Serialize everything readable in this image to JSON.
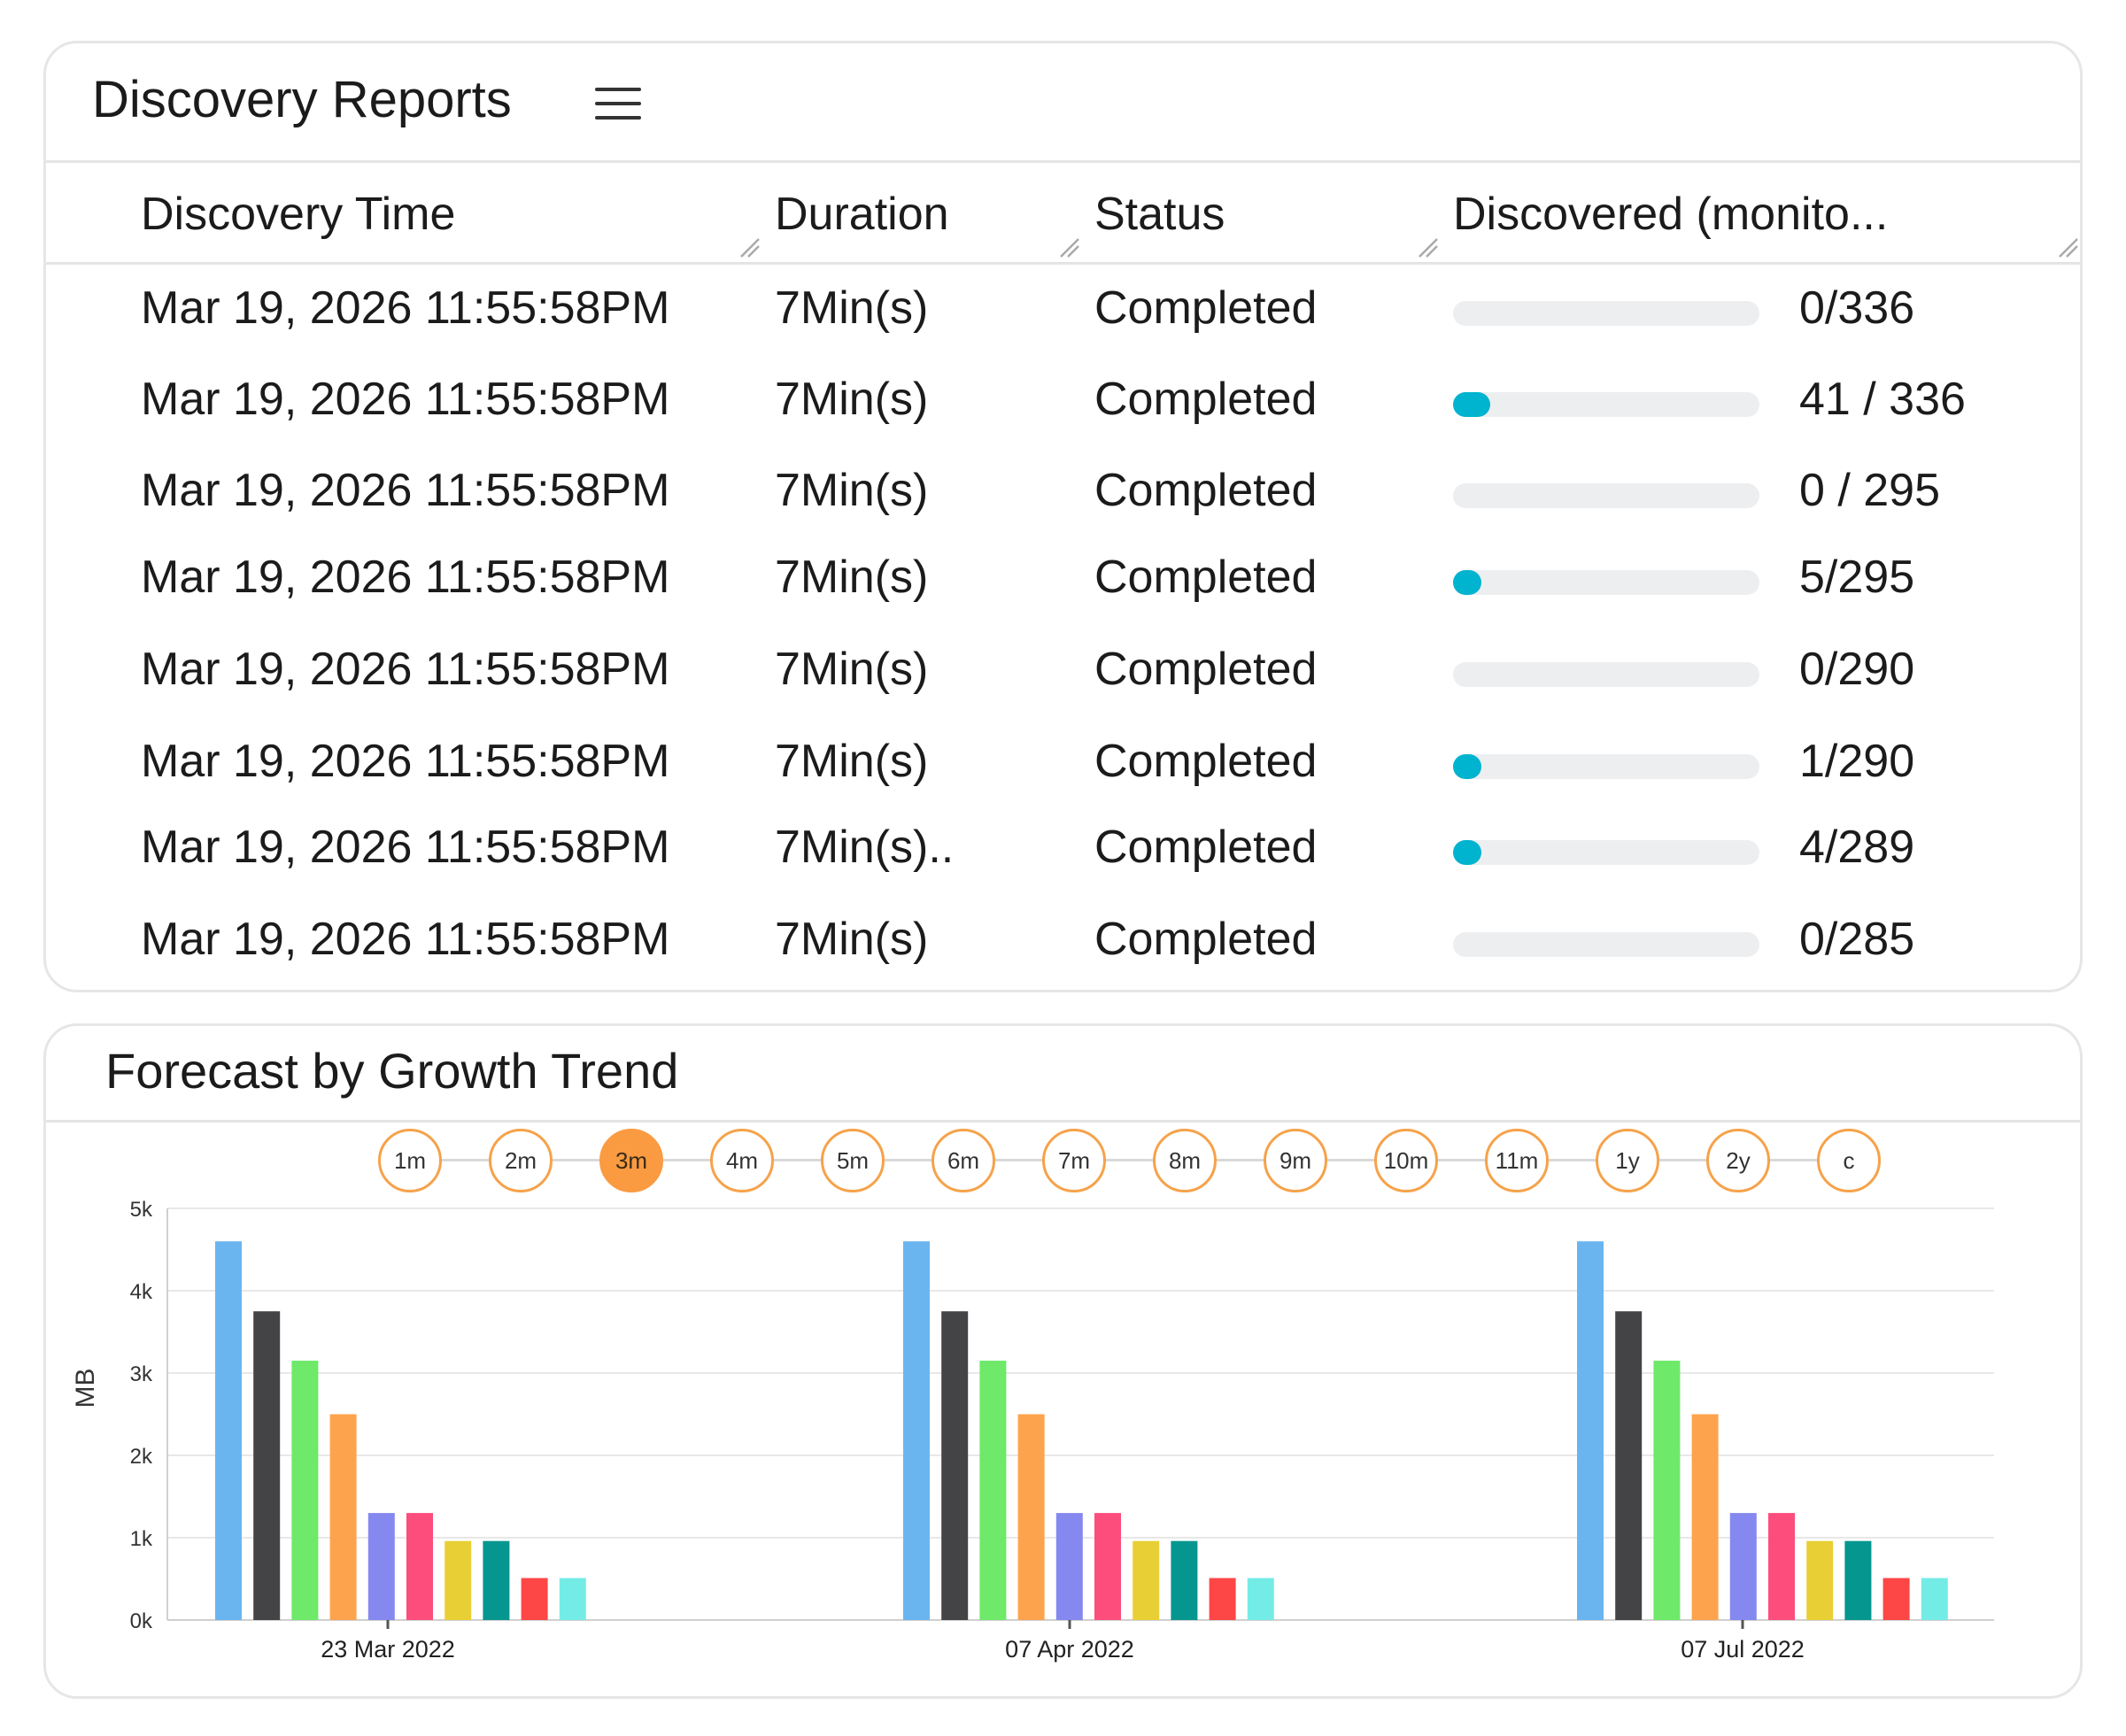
{
  "reports": {
    "title": "Discovery Reports",
    "menu_icon": "hamburger-menu-icon",
    "columns": [
      "Discovery Time",
      "Duration",
      "Status",
      "Discovered (monito..."
    ],
    "rows": [
      {
        "time": "Mar 19, 2026 11:55:58PM",
        "duration": "7Min(s)",
        "status": "Completed",
        "discovered": "0/336",
        "fraction": 0.0
      },
      {
        "time": "Mar 19, 2026 11:55:58PM",
        "duration": "7Min(s)",
        "status": "Completed",
        "discovered": "41 / 336",
        "fraction": 0.122
      },
      {
        "time": "Mar 19, 2026 11:55:58PM",
        "duration": "7Min(s)",
        "status": "Completed",
        "discovered": "0 / 295",
        "fraction": 0.0
      },
      {
        "time": "Mar 19, 2026 11:55:58PM",
        "duration": "7Min(s)",
        "status": "Completed",
        "discovered": "5/295",
        "fraction": 0.017
      },
      {
        "time": "Mar 19, 2026 11:55:58PM",
        "duration": "7Min(s)",
        "status": "Completed",
        "discovered": "0/290",
        "fraction": 0.0
      },
      {
        "time": "Mar 19, 2026 11:55:58PM",
        "duration": "7Min(s)",
        "status": "Completed",
        "discovered": "1/290",
        "fraction": 0.0034
      },
      {
        "time": "Mar 19, 2026 11:55:58PM",
        "duration": "7Min(s)..",
        "status": "Completed",
        "discovered": "4/289",
        "fraction": 0.014
      },
      {
        "time": "Mar 19, 2026 11:55:58PM",
        "duration": "7Min(s)",
        "status": "Completed",
        "discovered": "0/285",
        "fraction": 0.0
      }
    ],
    "progress_color": "#00b3cf",
    "track_color": "#eceef0"
  },
  "forecast": {
    "title": "Forecast by Growth Trend",
    "ranges": [
      "1m",
      "2m",
      "3m",
      "4m",
      "5m",
      "6m",
      "7m",
      "8m",
      "9m",
      "10m",
      "11m",
      "1y",
      "2y",
      "c"
    ],
    "active_range": "3m",
    "accent_color": "#fa9b42"
  },
  "chart_data": {
    "type": "bar",
    "ylabel": "MB",
    "ylim": [
      0,
      5000
    ],
    "yticks": [
      "0k",
      "1k",
      "2k",
      "3k",
      "4k",
      "5k"
    ],
    "categories": [
      "23 Mar 2022",
      "07 Apr 2022",
      "07 Jul 2022"
    ],
    "grid": true,
    "bar_colors": [
      "#6ab5f0",
      "#444447",
      "#6ee96a",
      "#fda34e",
      "#8588ee",
      "#fd4d7c",
      "#e9cf36",
      "#04968f",
      "#fd4646",
      "#74ece6"
    ],
    "series_values": [
      [
        4600,
        3750,
        3150,
        2500,
        1300,
        1300,
        960,
        960,
        510,
        510
      ],
      [
        4600,
        3750,
        3150,
        2500,
        1300,
        1300,
        960,
        960,
        510,
        510
      ],
      [
        4600,
        3750,
        3150,
        2500,
        1300,
        1300,
        960,
        960,
        510,
        510
      ]
    ]
  }
}
